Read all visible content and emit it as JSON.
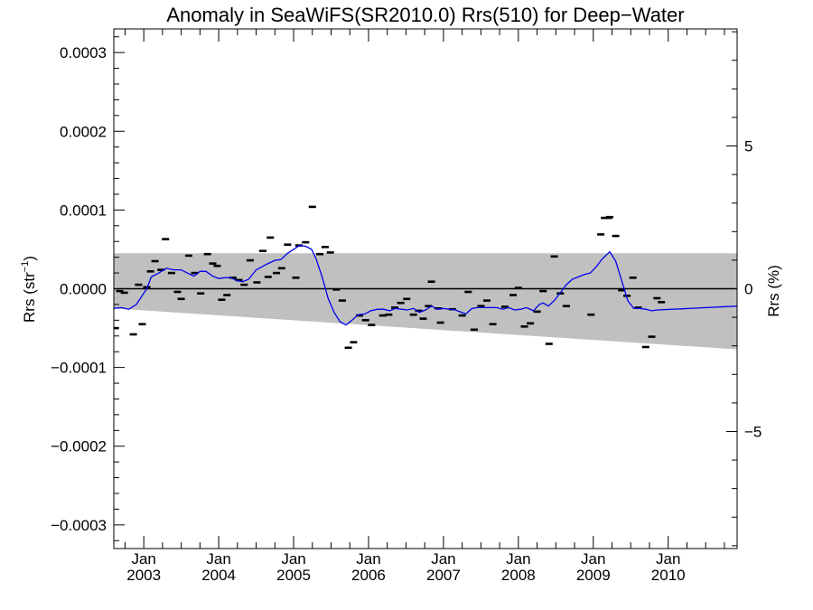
{
  "chart_data": {
    "type": "scatter",
    "title": "Anomaly in SeaWiFS(SR2010.0) Rrs(510) for Deep−Water",
    "ylabel_main": "Rrs (str",
    "ylabel_sup": "−1",
    "ylabel_close": ")",
    "ylabel_right": "Rrs (%)",
    "xlim": [
      2002.6,
      2010.92
    ],
    "ylim": [
      -0.00033,
      0.00033
    ],
    "right_ylim": [
      -9.1,
      9.1
    ],
    "grid": false,
    "legend": "none",
    "x_ticks": [
      {
        "x": 2003.0,
        "label1": "Jan",
        "label2": "2003"
      },
      {
        "x": 2004.0,
        "label1": "Jan",
        "label2": "2004"
      },
      {
        "x": 2005.0,
        "label1": "Jan",
        "label2": "2005"
      },
      {
        "x": 2006.0,
        "label1": "Jan",
        "label2": "2006"
      },
      {
        "x": 2007.0,
        "label1": "Jan",
        "label2": "2007"
      },
      {
        "x": 2008.0,
        "label1": "Jan",
        "label2": "2008"
      },
      {
        "x": 2009.0,
        "label1": "Jan",
        "label2": "2009"
      },
      {
        "x": 2010.0,
        "label1": "Jan",
        "label2": "2010"
      }
    ],
    "y_ticks": [
      {
        "v": 0.0003,
        "label": "0.0003"
      },
      {
        "v": 0.0002,
        "label": "0.0002"
      },
      {
        "v": 0.0001,
        "label": "0.0001"
      },
      {
        "v": 0.0,
        "label": "0.0000"
      },
      {
        "v": -0.0001,
        "label": "−0.0001"
      },
      {
        "v": -0.0002,
        "label": "−0.0002"
      },
      {
        "v": -0.0003,
        "label": "−0.0003"
      }
    ],
    "right_ticks": [
      {
        "v": 5,
        "label": "5"
      },
      {
        "v": 0,
        "label": "0"
      },
      {
        "v": -5,
        "label": "−5"
      }
    ],
    "band": {
      "color": "#c0c0c0",
      "upper": [
        [
          2002.6,
          4.5e-05
        ],
        [
          2010.92,
          4.5e-05
        ]
      ],
      "lower": [
        [
          2002.6,
          -2.5e-05
        ],
        [
          2010.92,
          -7.7e-05
        ]
      ]
    },
    "zero_line_color": "#000000",
    "points_color": "#000000",
    "points": [
      [
        2002.62,
        -5e-05
      ],
      [
        2002.68,
        -3e-06
      ],
      [
        2002.74,
        -5e-06
      ],
      [
        2002.86,
        -5.8e-05
      ],
      [
        2002.93,
        5e-06
      ],
      [
        2002.98,
        -4.5e-05
      ],
      [
        2003.04,
        2e-06
      ],
      [
        2003.09,
        2.2e-05
      ],
      [
        2003.15,
        3.5e-05
      ],
      [
        2003.23,
        2.4e-05
      ],
      [
        2003.29,
        6.3e-05
      ],
      [
        2003.37,
        2e-05
      ],
      [
        2003.45,
        -4e-06
      ],
      [
        2003.5,
        -1.3e-05
      ],
      [
        2003.6,
        4.2e-05
      ],
      [
        2003.68,
        2e-05
      ],
      [
        2003.76,
        -6e-06
      ],
      [
        2003.85,
        4.4e-05
      ],
      [
        2003.92,
        3.2e-05
      ],
      [
        2003.98,
        2.9e-05
      ],
      [
        2004.04,
        -1.4e-05
      ],
      [
        2004.11,
        -8e-06
      ],
      [
        2004.19,
        1.4e-05
      ],
      [
        2004.27,
        1.1e-05
      ],
      [
        2004.34,
        5e-06
      ],
      [
        2004.42,
        3.6e-05
      ],
      [
        2004.51,
        8e-06
      ],
      [
        2004.59,
        4.8e-05
      ],
      [
        2004.66,
        1.5e-05
      ],
      [
        2004.69,
        6.5e-05
      ],
      [
        2004.77,
        2e-05
      ],
      [
        2004.84,
        2.6e-05
      ],
      [
        2004.92,
        5.6e-05
      ],
      [
        2005.03,
        1.4e-05
      ],
      [
        2005.07,
        5.5e-05
      ],
      [
        2005.16,
        5.9e-05
      ],
      [
        2005.25,
        0.000104
      ],
      [
        2005.35,
        4.4e-05
      ],
      [
        2005.42,
        5.3e-05
      ],
      [
        2005.49,
        4.6e-05
      ],
      [
        2005.57,
        -1e-06
      ],
      [
        2005.65,
        -1.5e-05
      ],
      [
        2005.73,
        -7.5e-05
      ],
      [
        2005.8,
        -6.8e-05
      ],
      [
        2005.88,
        -3.4e-05
      ],
      [
        2005.96,
        -4e-05
      ],
      [
        2006.04,
        -4.6e-05
      ],
      [
        2006.19,
        -3.4e-05
      ],
      [
        2006.27,
        -3.3e-05
      ],
      [
        2006.35,
        -2.4e-05
      ],
      [
        2006.43,
        -1.8e-05
      ],
      [
        2006.51,
        -1.3e-05
      ],
      [
        2006.6,
        -3.3e-05
      ],
      [
        2006.67,
        -2.8e-05
      ],
      [
        2006.73,
        -3.8e-05
      ],
      [
        2006.8,
        -2.2e-05
      ],
      [
        2006.84,
        9e-06
      ],
      [
        2006.93,
        -2.5e-05
      ],
      [
        2006.96,
        -4.3e-05
      ],
      [
        2007.12,
        -2.6e-05
      ],
      [
        2007.25,
        -3.4e-05
      ],
      [
        2007.33,
        -4e-06
      ],
      [
        2007.41,
        -5.2e-05
      ],
      [
        2007.5,
        -2.2e-05
      ],
      [
        2007.58,
        -1.5e-05
      ],
      [
        2007.66,
        -4.5e-05
      ],
      [
        2007.82,
        -2.3e-05
      ],
      [
        2007.93,
        -8e-06
      ],
      [
        2008.0,
        1e-06
      ],
      [
        2008.08,
        -4.8e-05
      ],
      [
        2008.16,
        -4.4e-05
      ],
      [
        2008.25,
        -2.9e-05
      ],
      [
        2008.33,
        -3e-06
      ],
      [
        2008.41,
        -7e-05
      ],
      [
        2008.48,
        4.1e-05
      ],
      [
        2008.56,
        -6e-06
      ],
      [
        2008.64,
        -2.2e-05
      ],
      [
        2008.97,
        -3.3e-05
      ],
      [
        2009.1,
        6.9e-05
      ],
      [
        2009.15,
        9e-05
      ],
      [
        2009.2,
        9e-05
      ],
      [
        2009.22,
        9.1e-05
      ],
      [
        2009.3,
        6.7e-05
      ],
      [
        2009.38,
        -2e-06
      ],
      [
        2009.45,
        -9e-06
      ],
      [
        2009.53,
        1.4e-05
      ],
      [
        2009.6,
        -2.4e-05
      ],
      [
        2009.7,
        -7.4e-05
      ],
      [
        2009.78,
        -6.1e-05
      ],
      [
        2009.85,
        -1.2e-05
      ],
      [
        2009.91,
        -1.7e-05
      ]
    ],
    "trend_color": "#0000ee",
    "trend": [
      [
        2002.6,
        -2.5e-05
      ],
      [
        2002.7,
        -2.4e-05
      ],
      [
        2002.8,
        -2.6e-05
      ],
      [
        2002.9,
        -2e-05
      ],
      [
        2002.97,
        -1e-05
      ],
      [
        2003.04,
        0.0
      ],
      [
        2003.1,
        1.5e-05
      ],
      [
        2003.2,
        2e-05
      ],
      [
        2003.3,
        2.6e-05
      ],
      [
        2003.4,
        2.4e-05
      ],
      [
        2003.5,
        2.4e-05
      ],
      [
        2003.58,
        2e-05
      ],
      [
        2003.67,
        1.6e-05
      ],
      [
        2003.75,
        2.2e-05
      ],
      [
        2003.83,
        2.2e-05
      ],
      [
        2003.92,
        1.6e-05
      ],
      [
        2004.0,
        1.3e-05
      ],
      [
        2004.08,
        1.4e-05
      ],
      [
        2004.16,
        1.4e-05
      ],
      [
        2004.25,
        1e-05
      ],
      [
        2004.32,
        9e-06
      ],
      [
        2004.4,
        1.2e-05
      ],
      [
        2004.5,
        2.4e-05
      ],
      [
        2004.58,
        2.8e-05
      ],
      [
        2004.66,
        3.2e-05
      ],
      [
        2004.75,
        3.6e-05
      ],
      [
        2004.83,
        3.7e-05
      ],
      [
        2004.92,
        4.5e-05
      ],
      [
        2005.0,
        5e-05
      ],
      [
        2005.08,
        5.5e-05
      ],
      [
        2005.16,
        5.4e-05
      ],
      [
        2005.24,
        5e-05
      ],
      [
        2005.3,
        3.8e-05
      ],
      [
        2005.38,
        1.5e-05
      ],
      [
        2005.46,
        -1.2e-05
      ],
      [
        2005.54,
        -3e-05
      ],
      [
        2005.62,
        -4.2e-05
      ],
      [
        2005.7,
        -4.6e-05
      ],
      [
        2005.78,
        -4e-05
      ],
      [
        2005.86,
        -3.3e-05
      ],
      [
        2005.95,
        -3.2e-05
      ],
      [
        2006.03,
        -2.8e-05
      ],
      [
        2006.12,
        -2.6e-05
      ],
      [
        2006.2,
        -2.6e-05
      ],
      [
        2006.28,
        -2.8e-05
      ],
      [
        2006.36,
        -2.5e-05
      ],
      [
        2006.44,
        -2.6e-05
      ],
      [
        2006.52,
        -2.7e-05
      ],
      [
        2006.6,
        -2.5e-05
      ],
      [
        2006.68,
        -3e-05
      ],
      [
        2006.76,
        -2.7e-05
      ],
      [
        2006.84,
        -2.2e-05
      ],
      [
        2006.92,
        -2.6e-05
      ],
      [
        2007.0,
        -2.5e-05
      ],
      [
        2007.08,
        -2.6e-05
      ],
      [
        2007.16,
        -2.7e-05
      ],
      [
        2007.24,
        -3e-05
      ],
      [
        2007.3,
        -3.2e-05
      ],
      [
        2007.38,
        -2.5e-05
      ],
      [
        2007.46,
        -2.4e-05
      ],
      [
        2007.55,
        -2.4e-05
      ],
      [
        2007.63,
        -2.4e-05
      ],
      [
        2007.71,
        -2.4e-05
      ],
      [
        2007.79,
        -2.6e-05
      ],
      [
        2007.87,
        -2.4e-05
      ],
      [
        2007.95,
        -2.7e-05
      ],
      [
        2008.03,
        -2.6e-05
      ],
      [
        2008.11,
        -2.4e-05
      ],
      [
        2008.2,
        -2.8e-05
      ],
      [
        2008.28,
        -2e-05
      ],
      [
        2008.33,
        -1.8e-05
      ],
      [
        2008.4,
        -2.2e-05
      ],
      [
        2008.48,
        -1.5e-05
      ],
      [
        2008.56,
        -5e-06
      ],
      [
        2008.64,
        5e-06
      ],
      [
        2008.72,
        1.2e-05
      ],
      [
        2008.8,
        1.5e-05
      ],
      [
        2008.88,
        1.8e-05
      ],
      [
        2008.96,
        2e-05
      ],
      [
        2009.04,
        2.8e-05
      ],
      [
        2009.12,
        3.8e-05
      ],
      [
        2009.22,
        4.7e-05
      ],
      [
        2009.3,
        3.5e-05
      ],
      [
        2009.38,
        1e-05
      ],
      [
        2009.46,
        -1.5e-05
      ],
      [
        2009.54,
        -2.5e-05
      ],
      [
        2009.62,
        -2.5e-05
      ],
      [
        2009.7,
        -2.6e-05
      ],
      [
        2009.78,
        -2.8e-05
      ],
      [
        2009.86,
        -2.7e-05
      ],
      [
        2010.92,
        -2.2e-05
      ]
    ]
  }
}
